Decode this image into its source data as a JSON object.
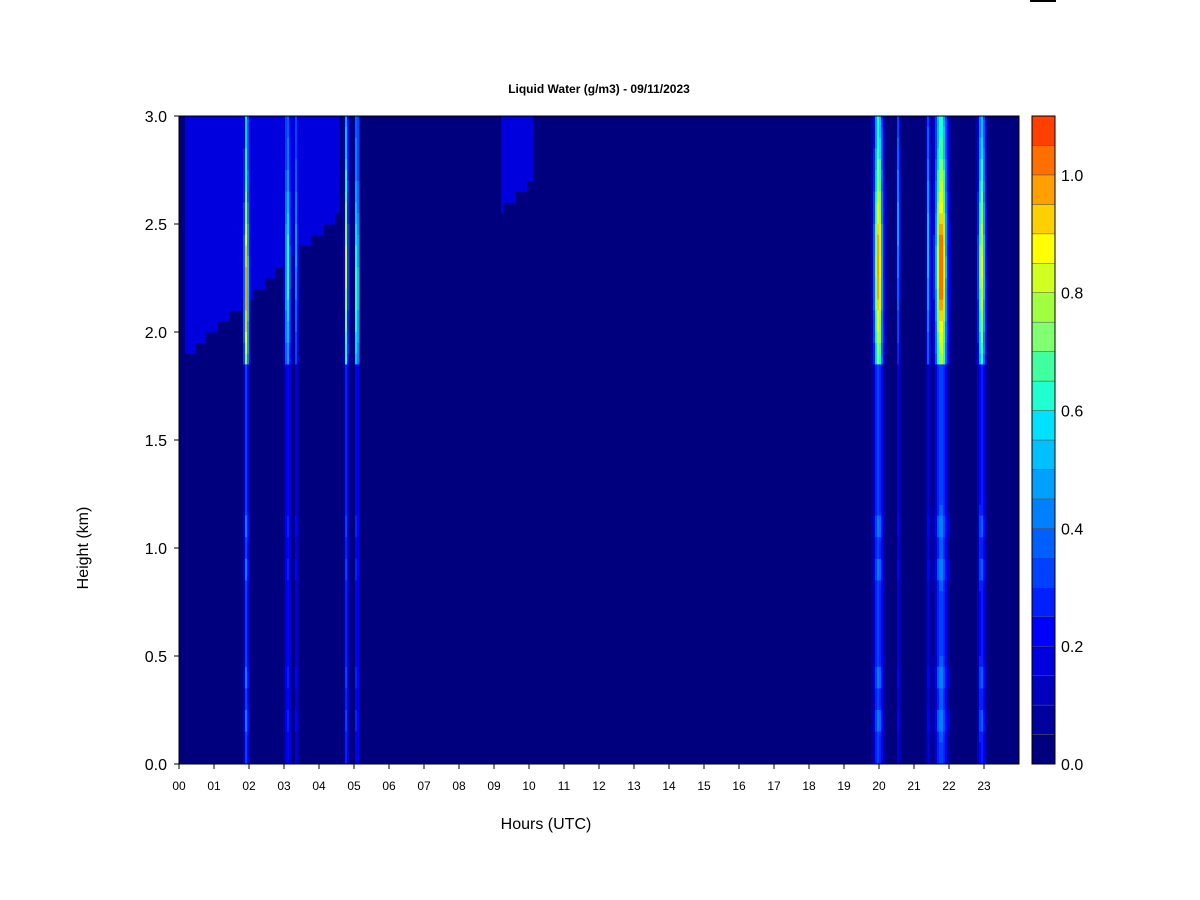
{
  "chart_data": {
    "type": "heatmap",
    "title": "Liquid Water (g/m3) - 09/11/2023",
    "xlabel": "Hours (UTC)",
    "ylabel": "Height (km)",
    "xlim": [
      0,
      24
    ],
    "ylim": [
      0,
      3.0
    ],
    "x_ticks": [
      "00",
      "01",
      "02",
      "03",
      "04",
      "05",
      "06",
      "07",
      "08",
      "09",
      "10",
      "11",
      "12",
      "13",
      "14",
      "15",
      "16",
      "17",
      "18",
      "19",
      "20",
      "21",
      "22",
      "23"
    ],
    "y_ticks": [
      "0.0",
      "0.5",
      "1.0",
      "1.5",
      "2.0",
      "2.5",
      "3.0"
    ],
    "colorbar": {
      "range": [
        0,
        1.1
      ],
      "step": 0.05,
      "tick_labels": [
        "0.0",
        "0.2",
        "0.4",
        "0.6",
        "0.8",
        "1.0"
      ],
      "colors": [
        "#00007f",
        "#00009f",
        "#0000bf",
        "#0000df",
        "#0000ff",
        "#0020ff",
        "#0040ff",
        "#0060ff",
        "#0080ff",
        "#00a0ff",
        "#00c0ff",
        "#00e0ff",
        "#20ffd0",
        "#40ff9f",
        "#80ff70",
        "#a0ff40",
        "#d0ff20",
        "#ffff00",
        "#ffd000",
        "#ffa000",
        "#ff7000",
        "#ff4000",
        "#ff0000",
        "#bf0000",
        "#7f0000"
      ]
    },
    "background_value": 0.02,
    "cloud_features": [
      {
        "hour": 1.92,
        "width": 0.08,
        "peak_value": 0.95,
        "peak_height_km": 2.2
      },
      {
        "hour": 3.1,
        "width": 0.1,
        "peak_value": 0.62,
        "peak_height_km": 2.3
      },
      {
        "hour": 3.35,
        "width": 0.06,
        "peak_value": 0.45,
        "peak_height_km": 2.4
      },
      {
        "hour": 4.78,
        "width": 0.06,
        "peak_value": 0.82,
        "peak_height_km": 2.3
      },
      {
        "hour": 5.08,
        "width": 0.06,
        "peak_value": 0.8,
        "peak_height_km": 2.2
      },
      {
        "hour": 19.98,
        "width": 0.15,
        "peak_value": 0.98,
        "peak_height_km": 2.3
      },
      {
        "hour": 20.55,
        "width": 0.05,
        "peak_value": 0.45,
        "peak_height_km": 2.5
      },
      {
        "hour": 21.4,
        "width": 0.06,
        "peak_value": 0.5,
        "peak_height_km": 2.4
      },
      {
        "hour": 21.77,
        "width": 0.2,
        "peak_value": 1.05,
        "peak_height_km": 2.3
      },
      {
        "hour": 22.93,
        "width": 0.12,
        "peak_value": 0.85,
        "peak_height_km": 2.3
      }
    ]
  }
}
